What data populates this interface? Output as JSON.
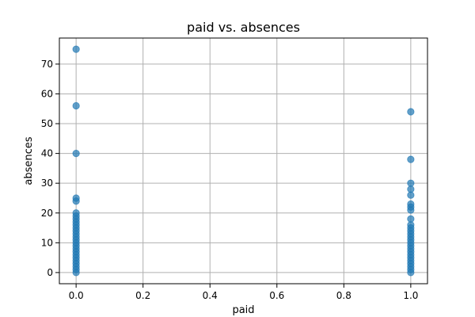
{
  "chart_data": {
    "type": "scatter",
    "title": "paid vs. absences",
    "xlabel": "paid",
    "ylabel": "absences",
    "xlim": [
      -0.05,
      1.05
    ],
    "ylim": [
      -3.75,
      78.75
    ],
    "xticks": [
      0.0,
      0.2,
      0.4,
      0.6,
      0.8,
      1.0
    ],
    "xtick_labels": [
      "0.0",
      "0.2",
      "0.4",
      "0.6",
      "0.8",
      "1.0"
    ],
    "yticks": [
      0,
      10,
      20,
      30,
      40,
      50,
      60,
      70
    ],
    "ytick_labels": [
      "0",
      "10",
      "20",
      "30",
      "40",
      "50",
      "60",
      "70"
    ],
    "grid": true,
    "marker_color": "#1f77b4",
    "marker_alpha": 0.7,
    "series": [
      {
        "points": [
          [
            0,
            0
          ],
          [
            0,
            1
          ],
          [
            0,
            2
          ],
          [
            0,
            3
          ],
          [
            0,
            4
          ],
          [
            0,
            5
          ],
          [
            0,
            6
          ],
          [
            0,
            7
          ],
          [
            0,
            8
          ],
          [
            0,
            9
          ],
          [
            0,
            10
          ],
          [
            0,
            11
          ],
          [
            0,
            12
          ],
          [
            0,
            13
          ],
          [
            0,
            14
          ],
          [
            0,
            15
          ],
          [
            0,
            16
          ],
          [
            0,
            17
          ],
          [
            0,
            18
          ],
          [
            0,
            19
          ],
          [
            0,
            20
          ],
          [
            0,
            24
          ],
          [
            0,
            25
          ],
          [
            0,
            40
          ],
          [
            0,
            56
          ],
          [
            0,
            75
          ],
          [
            1,
            0
          ],
          [
            1,
            1
          ],
          [
            1,
            2
          ],
          [
            1,
            3
          ],
          [
            1,
            4
          ],
          [
            1,
            5
          ],
          [
            1,
            6
          ],
          [
            1,
            7
          ],
          [
            1,
            8
          ],
          [
            1,
            9
          ],
          [
            1,
            10
          ],
          [
            1,
            11
          ],
          [
            1,
            12
          ],
          [
            1,
            13
          ],
          [
            1,
            14
          ],
          [
            1,
            15
          ],
          [
            1,
            16
          ],
          [
            1,
            18
          ],
          [
            1,
            21
          ],
          [
            1,
            22
          ],
          [
            1,
            23
          ],
          [
            1,
            26
          ],
          [
            1,
            28
          ],
          [
            1,
            30
          ],
          [
            1,
            38
          ],
          [
            1,
            54
          ]
        ]
      }
    ]
  }
}
